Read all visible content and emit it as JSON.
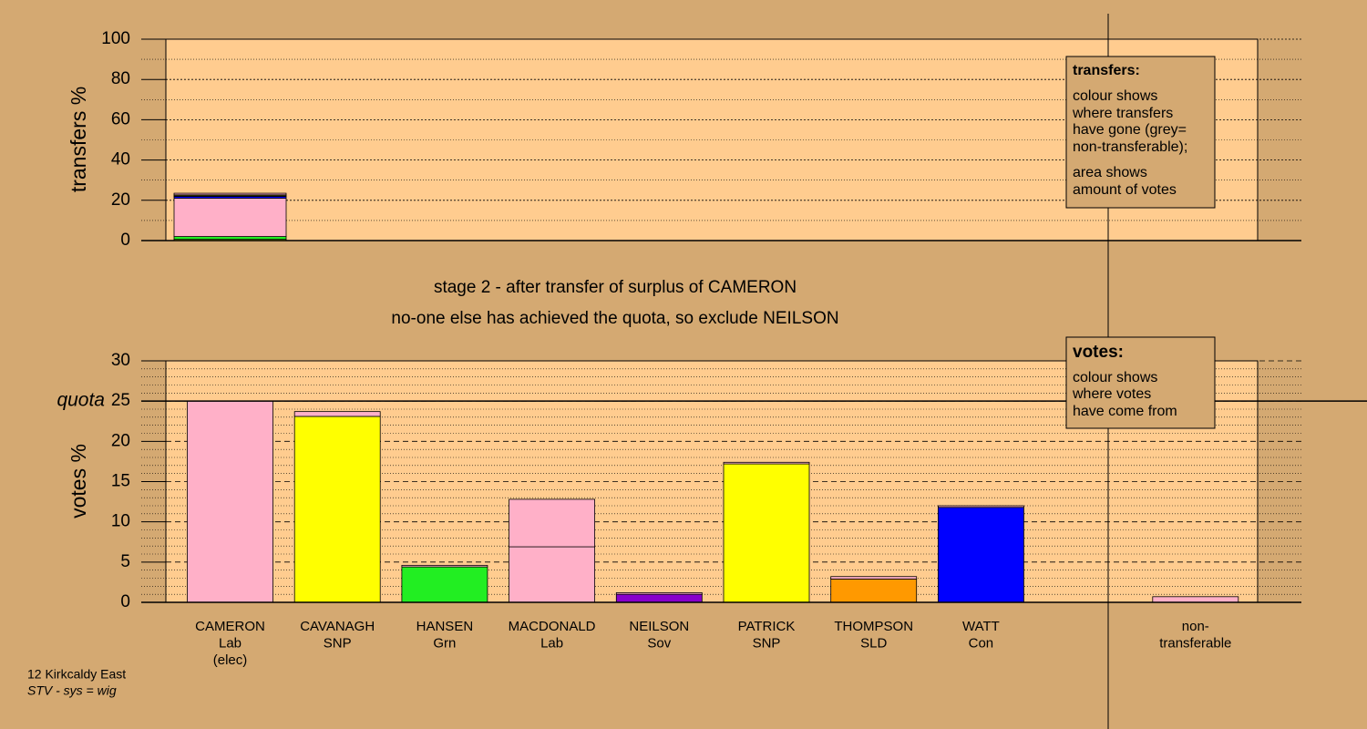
{
  "chart_data": [
    {
      "type": "stacked-bar",
      "ylabel": "transfers %",
      "ylim": [
        0,
        100
      ],
      "yticks": [
        0,
        20,
        40,
        60,
        80,
        100
      ],
      "grid": true,
      "segments": [
        {
          "color": "#ffff00",
          "value": 0.6
        },
        {
          "color": "#22ee22",
          "value": 1.4
        },
        {
          "color": "#ffb0c8",
          "value": 19.0
        },
        {
          "color": "#0000ff",
          "value": 0.9
        },
        {
          "color": "#ff9900",
          "value": 0.3
        },
        {
          "color": "#ffff00",
          "value": 0.5
        },
        {
          "color": "#ffb0c8",
          "value": 0.8
        }
      ]
    },
    {
      "type": "stacked-bar",
      "ylabel": "votes %",
      "ylim": [
        0,
        30
      ],
      "yticks": [
        0,
        5,
        10,
        15,
        20,
        25,
        30
      ],
      "grid": true,
      "quota": {
        "value": 25,
        "label": "quota"
      },
      "categories": [
        [
          "CAMERON",
          "Lab",
          "(elec)"
        ],
        [
          "CAVANAGH",
          "SNP"
        ],
        [
          "HANSEN",
          "Grn"
        ],
        [
          "MACDONALD",
          "Lab"
        ],
        [
          "NEILSON",
          "Sov"
        ],
        [
          "PATRICK",
          "SNP"
        ],
        [
          "THOMPSON",
          "SLD"
        ],
        [
          "WATT",
          "Con"
        ],
        null,
        [
          "non-",
          "transferable"
        ]
      ],
      "stacks": [
        [
          {
            "color": "#ffb0c8",
            "value": 25.0
          }
        ],
        [
          {
            "color": "#ffff00",
            "value": 23.1
          },
          {
            "color": "#ffb0c8",
            "value": 0.6
          }
        ],
        [
          {
            "color": "#22ee22",
            "value": 4.4
          },
          {
            "color": "#ffb0c8",
            "value": 0.2
          }
        ],
        [
          {
            "color": "#ffb0c8",
            "value": 6.9
          },
          {
            "color": "#ffb0c8",
            "value": 5.9
          }
        ],
        [
          {
            "color": "#8800cc",
            "value": 1.0
          },
          {
            "color": "#ffb0c8",
            "value": 0.2
          }
        ],
        [
          {
            "color": "#ffff00",
            "value": 17.2
          },
          {
            "color": "#ffb0c8",
            "value": 0.2
          }
        ],
        [
          {
            "color": "#ff9900",
            "value": 2.9
          },
          {
            "color": "#ffb0c8",
            "value": 0.3
          }
        ],
        [
          {
            "color": "#0000ff",
            "value": 11.8
          },
          {
            "color": "#ffb0c8",
            "value": 0.2
          }
        ],
        [],
        [
          {
            "color": "#ffb0c8",
            "value": 0.7
          }
        ]
      ]
    }
  ],
  "stage": [
    "stage 2 - after transfer of surplus of CAMERON",
    "no-one else has achieved the quota, so exclude NEILSON"
  ],
  "notes": {
    "transfers": {
      "title": "transfers:",
      "lines": [
        "colour shows",
        "where transfers",
        "have gone (grey=",
        "non-transferable);",
        "area shows",
        "amount of votes"
      ]
    },
    "votes": {
      "title": "votes:",
      "lines": [
        "colour shows",
        "where votes",
        "have come from"
      ]
    }
  },
  "footer": [
    "12 Kirkcaldy East",
    "STV - sys = wig"
  ]
}
